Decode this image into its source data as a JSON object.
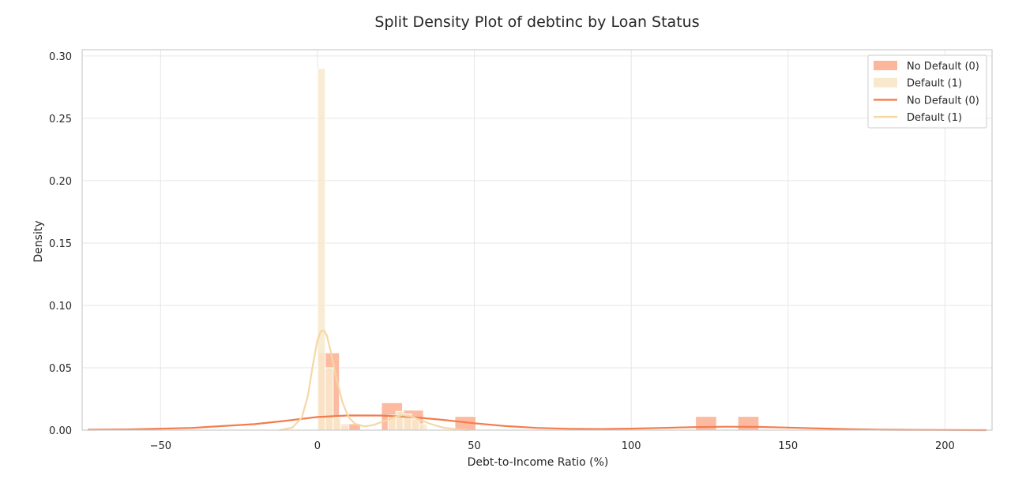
{
  "chart_data": {
    "type": "histogram-kde",
    "title": "Split Density Plot of debtinc by Loan Status",
    "xlabel": "Debt-to-Income Ratio (%)",
    "ylabel": "Density",
    "xlim": [
      -75,
      215
    ],
    "ylim": [
      0,
      0.305
    ],
    "xticks": [
      -50,
      0,
      50,
      100,
      150,
      200
    ],
    "xtick_labels": [
      "−50",
      "0",
      "50",
      "100",
      "150",
      "200"
    ],
    "yticks": [
      0.0,
      0.05,
      0.1,
      0.15,
      0.2,
      0.25,
      0.3
    ],
    "ytick_labels": [
      "0.00",
      "0.05",
      "0.10",
      "0.15",
      "0.20",
      "0.25",
      "0.30"
    ],
    "grid": true,
    "legend_position": "top-right",
    "legend": [
      "No Default (0)",
      "Default (1)",
      "No Default (0)",
      "Default (1)"
    ],
    "colors": {
      "no_default_hist": "#fcb69c",
      "default_hist": "#f8e9cc",
      "no_default_line": "#f47c4c",
      "default_line": "#f4d8a4",
      "grid": "#e6e6e6",
      "frame": "#cccccc"
    },
    "histograms": [
      {
        "name": "No Default (0)",
        "bins": [
          {
            "x0": 0.3,
            "x1": 7.0,
            "density": 0.062
          },
          {
            "x0": 7.0,
            "x1": 13.7,
            "density": 0.005
          },
          {
            "x0": 20.4,
            "x1": 27.1,
            "density": 0.022
          },
          {
            "x0": 27.1,
            "x1": 33.8,
            "density": 0.016
          },
          {
            "x0": 43.8,
            "x1": 50.5,
            "density": 0.011
          },
          {
            "x0": 120.5,
            "x1": 127.2,
            "density": 0.011
          },
          {
            "x0": 134.0,
            "x1": 140.7,
            "density": 0.011
          }
        ]
      },
      {
        "name": "Default (1)",
        "bins": [
          {
            "x0": 0.0,
            "x1": 2.5,
            "density": 0.29
          },
          {
            "x0": 2.5,
            "x1": 5.0,
            "density": 0.05
          },
          {
            "x0": 5.0,
            "x1": 7.5,
            "density": 0.01
          },
          {
            "x0": 7.5,
            "x1": 10.0,
            "density": 0.004
          },
          {
            "x0": 22.5,
            "x1": 25.0,
            "density": 0.012
          },
          {
            "x0": 25.0,
            "x1": 27.5,
            "density": 0.015
          },
          {
            "x0": 27.5,
            "x1": 30.0,
            "density": 0.013
          },
          {
            "x0": 30.0,
            "x1": 32.5,
            "density": 0.009
          },
          {
            "x0": 32.5,
            "x1": 35.0,
            "density": 0.005
          }
        ]
      }
    ],
    "lines": [
      {
        "name": "No Default (0)",
        "x": [
          -73,
          -60,
          -40,
          -20,
          -10,
          0,
          10,
          20,
          30,
          40,
          50,
          60,
          70,
          80,
          90,
          100,
          110,
          120,
          130,
          140,
          150,
          160,
          170,
          180,
          190,
          200,
          213
        ],
        "y": [
          0.0003,
          0.0006,
          0.0018,
          0.0048,
          0.0075,
          0.0105,
          0.0118,
          0.0117,
          0.0105,
          0.0082,
          0.0055,
          0.0032,
          0.0018,
          0.0011,
          0.0009,
          0.0012,
          0.0018,
          0.0024,
          0.0027,
          0.0026,
          0.002,
          0.0013,
          0.0007,
          0.0003,
          0.0002,
          0.0001,
          0.0
        ]
      },
      {
        "name": "Default (1)",
        "x": [
          -12,
          -8,
          -5,
          -3,
          -1.5,
          0,
          1,
          2,
          3,
          4.5,
          6,
          8,
          10,
          12,
          15,
          18,
          21,
          24,
          27,
          30,
          33,
          36,
          40,
          45,
          48
        ],
        "y": [
          0.0,
          0.002,
          0.01,
          0.028,
          0.052,
          0.072,
          0.079,
          0.08,
          0.076,
          0.06,
          0.042,
          0.022,
          0.01,
          0.005,
          0.003,
          0.0042,
          0.007,
          0.01,
          0.012,
          0.011,
          0.008,
          0.005,
          0.002,
          0.0005,
          0.0
        ]
      }
    ]
  }
}
